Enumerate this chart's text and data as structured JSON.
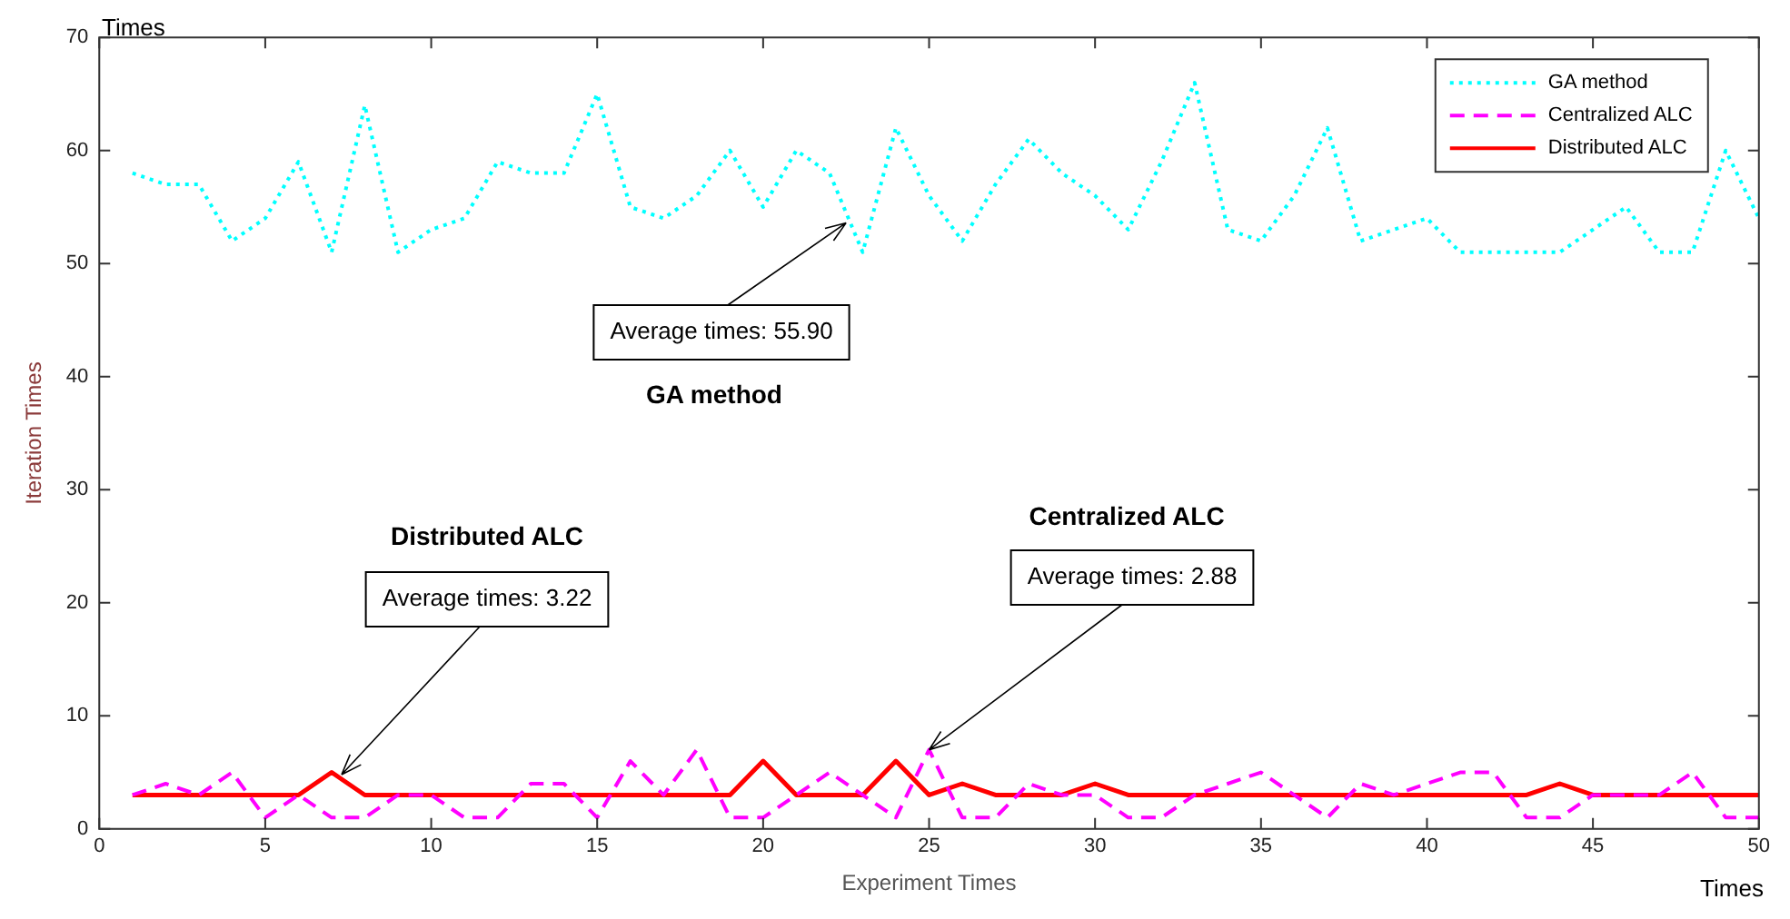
{
  "chart_data": {
    "type": "line",
    "xlabel": "Experiment Times",
    "ylabel": "Iteration Times",
    "x": [
      1,
      2,
      3,
      4,
      5,
      6,
      7,
      8,
      9,
      10,
      11,
      12,
      13,
      14,
      15,
      16,
      17,
      18,
      19,
      20,
      21,
      22,
      23,
      24,
      25,
      26,
      27,
      28,
      29,
      30,
      31,
      32,
      33,
      34,
      35,
      36,
      37,
      38,
      39,
      40,
      41,
      42,
      43,
      44,
      45,
      46,
      47,
      48,
      49,
      50
    ],
    "series": [
      {
        "name": "GA method",
        "color": "#00ffff",
        "line_style": "dotted",
        "values": [
          58,
          57,
          57,
          52,
          54,
          59,
          51,
          64,
          51,
          53,
          54,
          59,
          58,
          58,
          65,
          55,
          54,
          56,
          60,
          55,
          60,
          58,
          51,
          62,
          56,
          52,
          57,
          61,
          58,
          56,
          53,
          59,
          66,
          53,
          52,
          56,
          62,
          52,
          53,
          54,
          51,
          51,
          51,
          51,
          53,
          55,
          51,
          51,
          60,
          54
        ]
      },
      {
        "name": "Centralized ALC",
        "color": "#ff00ff",
        "line_style": "dashed",
        "values": [
          3,
          4,
          3,
          5,
          1,
          3,
          1,
          1,
          3,
          3,
          1,
          1,
          4,
          4,
          1,
          6,
          3,
          7,
          1,
          1,
          3,
          5,
          3,
          1,
          7,
          1,
          1,
          4,
          3,
          3,
          1,
          1,
          3,
          4,
          5,
          3,
          1,
          4,
          3,
          4,
          5,
          5,
          1,
          1,
          3,
          3,
          3,
          5,
          1,
          1
        ]
      },
      {
        "name": "Distributed ALC",
        "color": "#ff0000",
        "line_style": "solid",
        "values": [
          3,
          3,
          3,
          3,
          3,
          3,
          5,
          3,
          3,
          3,
          3,
          3,
          3,
          3,
          3,
          3,
          3,
          3,
          3,
          6,
          3,
          3,
          3,
          6,
          3,
          4,
          3,
          3,
          3,
          4,
          3,
          3,
          3,
          3,
          3,
          3,
          3,
          3,
          3,
          3,
          3,
          3,
          3,
          4,
          3,
          3,
          3,
          3,
          3,
          3
        ]
      }
    ],
    "xlim": [
      0,
      50
    ],
    "xticks": [
      0,
      5,
      10,
      15,
      20,
      25,
      30,
      35,
      40,
      45,
      50
    ],
    "ylim": [
      0,
      70
    ],
    "yticks": [
      0,
      10,
      20,
      30,
      40,
      50,
      60,
      70
    ],
    "grid": false,
    "legend": "top right",
    "marker": "none",
    "annotations": [
      {
        "text": "Average times: 55.90",
        "x": 22.5,
        "y": 53.6
      },
      "GA method",
      {
        "text": "Average times: 3.22",
        "x": 7.3,
        "y": 4.8
      },
      "Distributed ALC",
      {
        "text": "Average times: 2.88",
        "x": 25,
        "y": 7
      },
      "Centralized ALC",
      "Times",
      "Times"
    ]
  }
}
